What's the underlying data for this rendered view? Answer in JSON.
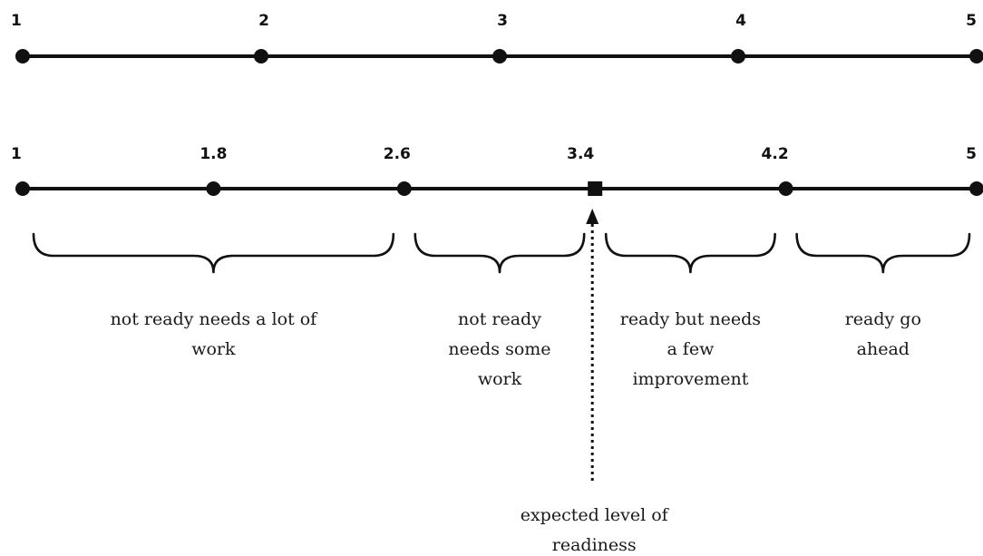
{
  "scales": [
    {
      "ticks": [
        {
          "label": "1",
          "value": 1
        },
        {
          "label": "2",
          "value": 2
        },
        {
          "label": "3",
          "value": 3
        },
        {
          "label": "4",
          "value": 4
        },
        {
          "label": "5",
          "value": 5
        }
      ]
    },
    {
      "ticks": [
        {
          "label": "1",
          "value": 1
        },
        {
          "label": "1.8",
          "value": 1.8
        },
        {
          "label": "2.6",
          "value": 2.6
        },
        {
          "label": "3.4",
          "value": 3.4,
          "marker": "square"
        },
        {
          "label": "4.2",
          "value": 4.2
        },
        {
          "label": "5",
          "value": 5
        }
      ]
    }
  ],
  "zones": [
    {
      "from": 1,
      "to": 2.6,
      "lines": [
        "not ready needs a lot of",
        "work"
      ]
    },
    {
      "from": 2.6,
      "to": 3.4,
      "lines": [
        "not ready",
        "needs some",
        "work"
      ]
    },
    {
      "from": 3.4,
      "to": 4.2,
      "lines": [
        "ready but needs",
        "a few",
        "improvement"
      ]
    },
    {
      "from": 4.2,
      "to": 5,
      "lines": [
        "ready go",
        "ahead"
      ]
    }
  ],
  "expected": {
    "value": 3.4,
    "lines": [
      "expected level of",
      "readiness"
    ]
  }
}
